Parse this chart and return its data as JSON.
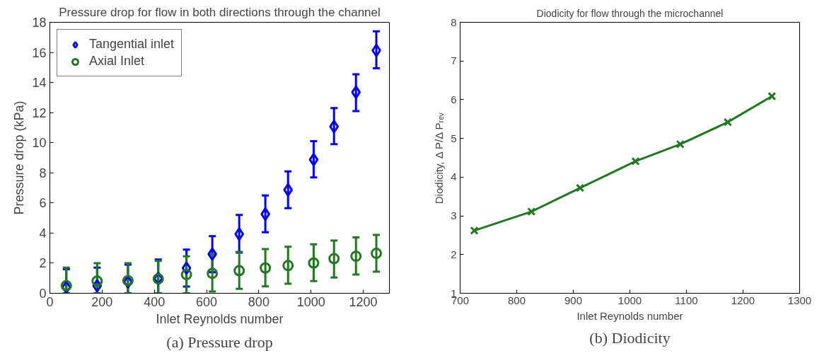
{
  "chart_data": [
    {
      "type": "scatter",
      "title": "Pressure drop for flow in both directions through the channel",
      "xlabel": "Inlet Reynolds number",
      "ylabel": "Pressure drop (kPa)",
      "annotations": [
        "(a) Pressure drop"
      ],
      "xlim": [
        0,
        1300
      ],
      "xticks": [
        0,
        200,
        400,
        600,
        800,
        1000,
        1200
      ],
      "ylim": [
        0,
        18
      ],
      "yticks": [
        0,
        2,
        4,
        6,
        8,
        10,
        12,
        14,
        16,
        18
      ],
      "grid": false,
      "legend": "top left",
      "x": [
        63,
        181,
        299,
        415,
        523,
        622,
        725,
        825,
        912,
        1010,
        1088,
        1172,
        1250
      ],
      "series": [
        {
          "name": "Tangential inlet",
          "color": "#0000ff",
          "marker": "diamond",
          "values": [
            0.4,
            0.5,
            0.75,
            0.98,
            1.67,
            2.6,
            3.93,
            5.26,
            6.87,
            8.88,
            11.07,
            13.35,
            16.13
          ],
          "errors": [
            [
              0,
              1.6
            ],
            [
              0,
              1.7
            ],
            [
              0,
              1.9
            ],
            [
              0,
              2.25
            ],
            [
              0.45,
              2.9
            ],
            [
              1.4,
              3.8
            ],
            [
              2.7,
              5.2
            ],
            [
              4.05,
              6.5
            ],
            [
              5.65,
              8.1
            ],
            [
              7.7,
              10.1
            ],
            [
              9.9,
              12.3
            ],
            [
              12.1,
              14.55
            ],
            [
              14.95,
              17.4
            ]
          ]
        },
        {
          "name": "Axial Inlet",
          "color": "#217821",
          "marker": "circle",
          "values": [
            0.5,
            0.81,
            0.84,
            0.96,
            1.24,
            1.32,
            1.5,
            1.68,
            1.84,
            2.01,
            2.3,
            2.46,
            2.65
          ],
          "errors": [
            [
              0,
              1.7
            ],
            [
              0,
              2.0
            ],
            [
              0,
              2.0
            ],
            [
              0,
              2.15
            ],
            [
              0,
              2.45
            ],
            [
              0.12,
              2.6
            ],
            [
              0.29,
              2.75
            ],
            [
              0.46,
              2.94
            ],
            [
              0.64,
              3.09
            ],
            [
              0.81,
              3.25
            ],
            [
              1.05,
              3.5
            ],
            [
              1.24,
              3.71
            ],
            [
              1.43,
              3.88
            ]
          ]
        }
      ]
    },
    {
      "type": "line",
      "title": "Diodicity for flow through the microchannel",
      "xlabel": "Inlet Reynolds number",
      "ylabel": "Diodicity, Δ P/Δ Pᵣₑᵥ",
      "annotations": [
        "(b) Diodicity"
      ],
      "xlim": [
        700,
        1300
      ],
      "xticks": [
        700,
        800,
        900,
        1000,
        1100,
        1200,
        1300
      ],
      "ylim": [
        1,
        8
      ],
      "yticks": [
        1,
        2,
        3,
        4,
        5,
        6,
        7,
        8
      ],
      "grid": false,
      "legend": false,
      "marker": "cross",
      "line_style": "solid",
      "x": [
        725,
        826,
        912,
        1010,
        1089,
        1173,
        1251
      ],
      "series": [
        {
          "color": "#217821",
          "values": [
            2.62,
            3.11,
            3.72,
            4.41,
            4.85,
            5.42,
            6.09
          ]
        }
      ]
    }
  ]
}
